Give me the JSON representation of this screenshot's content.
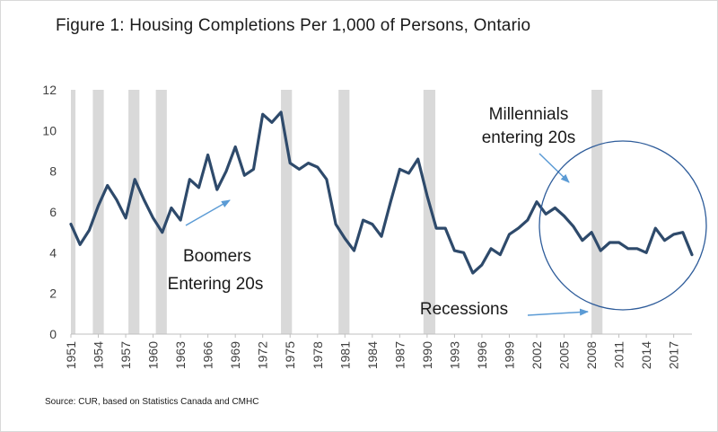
{
  "chart_data": {
    "type": "line",
    "title": "Figure 1: Housing Completions Per 1,000 of Persons, Ontario",
    "source": "Source: CUR, based on Statistics Canada and CMHC",
    "ylim": [
      0,
      12
    ],
    "yticks": [
      0,
      2,
      4,
      6,
      8,
      10,
      12
    ],
    "xlim": [
      1951,
      2019
    ],
    "xticks": [
      1951,
      1954,
      1957,
      1960,
      1963,
      1966,
      1969,
      1972,
      1975,
      1978,
      1981,
      1984,
      1987,
      1990,
      1993,
      1996,
      1999,
      2002,
      2005,
      2008,
      2011,
      2014,
      2017
    ],
    "grid": false,
    "line_color": "#2e4a6b",
    "recession_color": "#d9d9d9",
    "recessions": [
      [
        1951,
        1951.5
      ],
      [
        1953.4,
        1954.6
      ],
      [
        1957.3,
        1958.5
      ],
      [
        1960.3,
        1961.5
      ],
      [
        1974,
        1975.2
      ],
      [
        1980.3,
        1981.5
      ],
      [
        1989.6,
        1990.9
      ],
      [
        2008,
        2009.2
      ]
    ],
    "series": [
      {
        "x": [
          1951,
          1952,
          1953,
          1954,
          1955,
          1956,
          1957,
          1958,
          1959,
          1960,
          1961,
          1962,
          1963,
          1964,
          1965,
          1966,
          1967,
          1968,
          1969,
          1970,
          1971,
          1972,
          1973,
          1974,
          1975,
          1976,
          1977,
          1978,
          1979,
          1980,
          1981,
          1982,
          1983,
          1984,
          1985,
          1986,
          1987,
          1988,
          1989,
          1990,
          1991,
          1992,
          1993,
          1994,
          1995,
          1996,
          1997,
          1998,
          1999,
          2000,
          2001,
          2002,
          2003,
          2004,
          2005,
          2006,
          2007,
          2008,
          2009,
          2010,
          2011,
          2012,
          2013,
          2014,
          2015,
          2016,
          2017,
          2018,
          2019
        ],
        "values": [
          5.4,
          4.4,
          5.1,
          6.3,
          7.3,
          6.6,
          5.7,
          7.6,
          6.6,
          5.7,
          5.0,
          6.2,
          5.6,
          7.6,
          7.2,
          8.8,
          7.1,
          8.0,
          9.2,
          7.8,
          8.1,
          10.8,
          10.4,
          10.9,
          8.4,
          8.1,
          8.4,
          8.2,
          7.6,
          5.4,
          4.7,
          4.1,
          5.6,
          5.4,
          4.8,
          6.5,
          8.1,
          7.9,
          8.6,
          6.8,
          5.2,
          5.2,
          4.1,
          4.0,
          3.0,
          3.4,
          4.2,
          3.9,
          4.9,
          5.2,
          5.6,
          6.5,
          5.9,
          6.2,
          5.8,
          5.3,
          4.6,
          5.0,
          4.1,
          4.5,
          4.5,
          4.2,
          4.2,
          4.0,
          5.2,
          4.6,
          4.9,
          5.0,
          3.9
        ]
      }
    ],
    "annotations": [
      {
        "id": "boomers",
        "lines": [
          "Boomers",
          "Entering 20s"
        ]
      },
      {
        "id": "millennials",
        "lines": [
          "Millennials",
          "entering 20s"
        ]
      },
      {
        "id": "recessions",
        "lines": [
          "Recessions"
        ]
      }
    ],
    "arrow_color": "#5b9bd5",
    "circle_color": "#2e5c9a"
  }
}
